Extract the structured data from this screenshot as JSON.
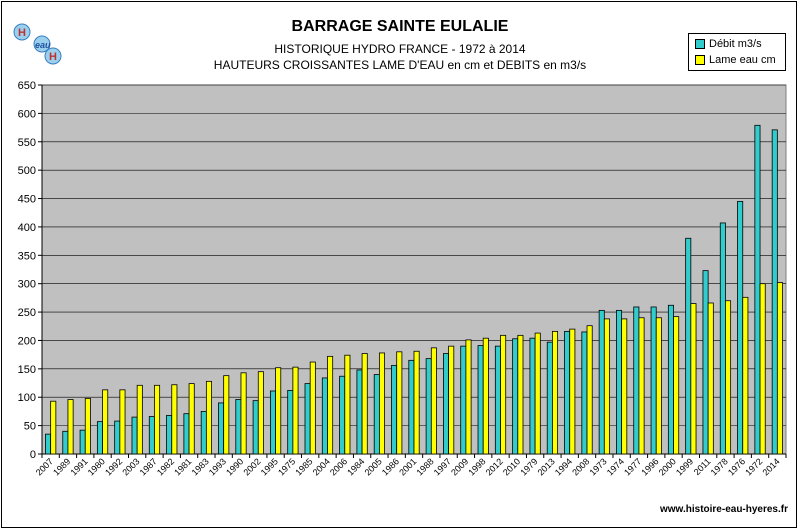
{
  "header": {
    "title": "BARRAGE SAINTE EULALIE",
    "subtitle1": "HISTORIQUE HYDRO FRANCE - 1972 à 2014",
    "subtitle2": "HAUTEURS CROISSANTES LAME D'EAU en cm et DEBITS en m3/s"
  },
  "logo": {
    "text": "H2eau"
  },
  "footer": {
    "url": "www.histoire-eau-hyeres.fr"
  },
  "legend": {
    "items": [
      {
        "label": "Débit m3/s",
        "color": "#33cccc"
      },
      {
        "label": "Lame eau cm",
        "color": "#ffff00"
      }
    ]
  },
  "colors": {
    "plot_bg": "#c0c0c0",
    "debit": "#33cccc",
    "lame": "#ffff00"
  },
  "chart_data": {
    "type": "bar",
    "categories": [
      "2007",
      "1989",
      "1991",
      "1980",
      "1992",
      "2003",
      "1987",
      "1982",
      "1981",
      "1983",
      "1993",
      "1990",
      "2002",
      "1995",
      "1975",
      "1985",
      "2004",
      "2006",
      "1984",
      "2005",
      "1986",
      "2001",
      "1988",
      "1997",
      "2009",
      "1998",
      "2012",
      "2010",
      "1979",
      "2013",
      "1994",
      "2008",
      "1973",
      "1974",
      "1977",
      "1996",
      "2000",
      "1999",
      "2011",
      "1978",
      "1976",
      "1972",
      "2014"
    ],
    "series": [
      {
        "name": "Débit m3/s",
        "values": [
          35,
          40,
          42,
          57,
          58,
          65,
          66,
          68,
          71,
          75,
          90,
          96,
          94,
          111,
          112,
          124,
          134,
          137,
          148,
          140,
          156,
          165,
          168,
          177,
          190,
          191,
          190,
          203,
          204,
          197,
          216,
          215,
          253,
          253,
          259,
          259,
          262,
          380,
          323,
          407,
          445,
          579,
          571
        ]
      },
      {
        "name": "Lame eau cm",
        "values": [
          93,
          96,
          98,
          113,
          113,
          121,
          121,
          122,
          124,
          128,
          138,
          143,
          145,
          152,
          153,
          162,
          172,
          174,
          177,
          178,
          180,
          181,
          187,
          190,
          201,
          204,
          209,
          209,
          213,
          216,
          220,
          226,
          238,
          238,
          240,
          240,
          242,
          265,
          266,
          270,
          276,
          300,
          302
        ]
      }
    ],
    "ylim": [
      0,
      650
    ],
    "yticks": [
      0,
      50,
      100,
      150,
      200,
      250,
      300,
      350,
      400,
      450,
      500,
      550,
      600,
      650
    ],
    "grid": true,
    "legend_position": "top-right"
  }
}
